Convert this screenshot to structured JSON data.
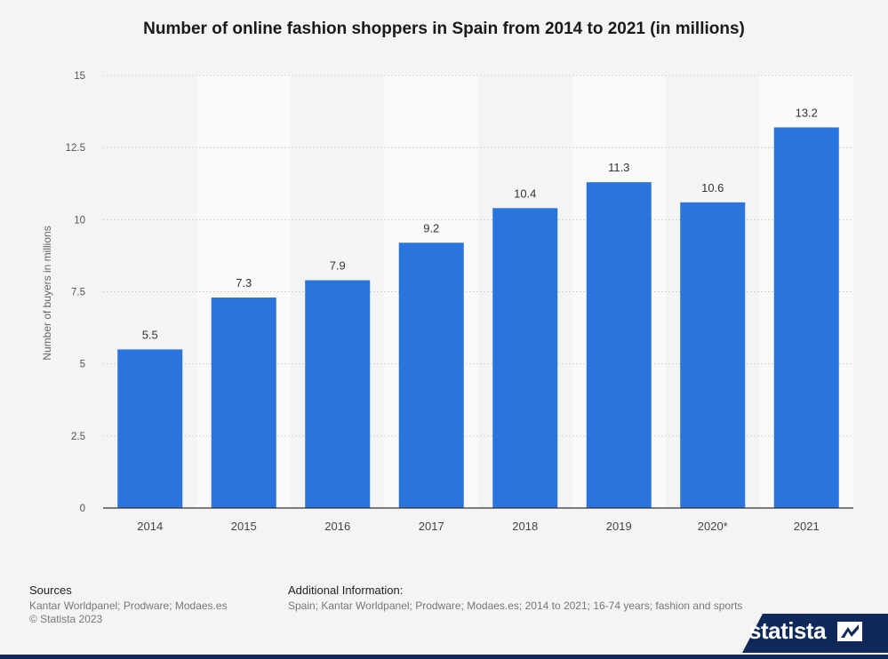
{
  "chart_data": {
    "type": "bar",
    "title": "Number of online fashion shoppers in Spain from 2014 to 2021 (in millions)",
    "ylabel": "Number of buyers in millions",
    "xlabel": "",
    "categories": [
      "2014",
      "2015",
      "2016",
      "2017",
      "2018",
      "2019",
      "2020*",
      "2021"
    ],
    "values": [
      5.5,
      7.3,
      7.9,
      9.2,
      10.4,
      11.3,
      10.6,
      13.2
    ],
    "value_labels": [
      "5.5",
      "7.3",
      "7.9",
      "9.2",
      "10.4",
      "11.3",
      "10.6",
      "13.2"
    ],
    "ylim": [
      0,
      15
    ],
    "yticks": [
      0,
      2.5,
      5,
      7.5,
      10,
      12.5,
      15
    ],
    "ytick_labels": [
      "0",
      "2.5",
      "5",
      "7.5",
      "10",
      "12.5",
      "15"
    ],
    "grid": true,
    "bar_color": "#2a74dd"
  },
  "footer": {
    "sources_title": "Sources",
    "sources_text": "Kantar Worldpanel; Prodware; Modaes.es",
    "copyright": "© Statista 2023",
    "additional_title": "Additional Information:",
    "additional_text": "Spain; Kantar Worldpanel; Prodware; Modaes.es; 2014 to 2021; 16-74 years; fashion and sports"
  },
  "brand": {
    "name": "statista",
    "icon": "statista-logo-icon",
    "color": "#0f2a5a"
  }
}
